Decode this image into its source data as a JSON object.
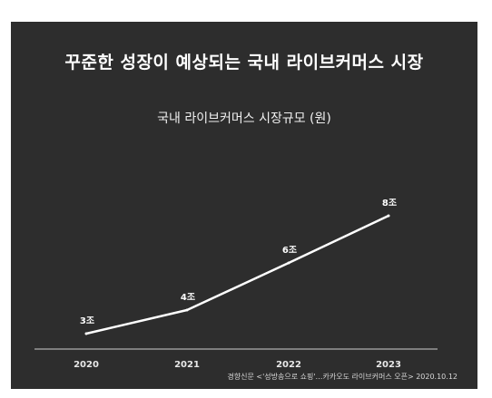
{
  "headline": "꾸준한 성장이 예상되는 국내 라이브커머스 시장",
  "source": "경향신문 <'성방송으로 쇼핑'…카카오도 라이브커머스 오픈> 2020.10.12",
  "colors": {
    "background": "#2d2d2d",
    "line": "#ffffff",
    "text": "#ffffff"
  },
  "chart_data": {
    "type": "line",
    "title": "국내 라이브커머스 시장규모 (원)",
    "xlabel": "",
    "ylabel": "",
    "categories": [
      "2020",
      "2021",
      "2022",
      "2023"
    ],
    "series": [
      {
        "values": [
          3,
          4,
          6,
          8
        ],
        "labels": [
          "3조",
          "4조",
          "6조",
          "8조"
        ]
      }
    ],
    "ylim": [
      0,
      10
    ],
    "grid": false,
    "legend": "none"
  }
}
